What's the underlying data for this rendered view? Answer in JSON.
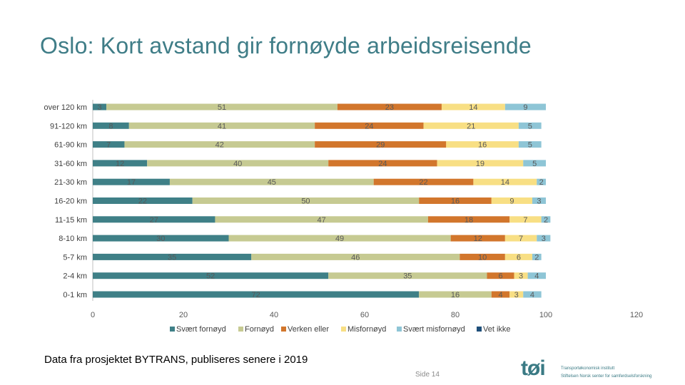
{
  "title": "Oslo: Kort avstand gir fornøyde arbeidsreisende",
  "footer": {
    "source": "Data fra prosjektet BYTRANS, publiseres senere i 2019",
    "page": "Side 14",
    "logo_word": "tøi",
    "logo_line1": "Transportøkonomisk institutt",
    "logo_line2": "Stiftelsen Norsk senter for samferdselsforskning"
  },
  "chart_data": {
    "type": "bar",
    "orientation": "horizontal",
    "stacked": true,
    "categories": [
      "over 120 km",
      "91-120 km",
      "61-90 km",
      "31-60 km",
      "21-30 km",
      "16-20 km",
      "11-15 km",
      "8-10 km",
      "5-7 km",
      "2-4 km",
      "0-1 km"
    ],
    "series": [
      {
        "name": "Svært fornøyd",
        "color": "#3f8087",
        "values": [
          3,
          8,
          7,
          12,
          17,
          22,
          27,
          30,
          35,
          52,
          72
        ]
      },
      {
        "name": "Fornøyd",
        "color": "#c6ca92",
        "values": [
          51,
          41,
          42,
          40,
          45,
          50,
          47,
          49,
          46,
          35,
          16
        ]
      },
      {
        "name": "Verken eller",
        "color": "#d2762c",
        "values": [
          23,
          24,
          29,
          24,
          22,
          16,
          18,
          12,
          10,
          6,
          4
        ]
      },
      {
        "name": "Misfornøyd",
        "color": "#f8df84",
        "values": [
          14,
          21,
          16,
          19,
          14,
          9,
          7,
          7,
          6,
          3,
          3
        ]
      },
      {
        "name": "Svært misfornøyd",
        "color": "#8ec5d6",
        "values": [
          9,
          5,
          5,
          5,
          2,
          3,
          2,
          3,
          2,
          4,
          4
        ]
      },
      {
        "name": "Vet ikke",
        "color": "#1f4f7a",
        "values": [
          0,
          0,
          0,
          0,
          0,
          0,
          0,
          0,
          0,
          0,
          0
        ]
      }
    ],
    "labels": [
      [
        "3",
        "51",
        "23",
        "14",
        "9",
        ""
      ],
      [
        "8",
        "41",
        "24",
        "21",
        "5",
        ""
      ],
      [
        "7",
        "42",
        "29",
        "16",
        "5",
        ""
      ],
      [
        "12",
        "40",
        "24",
        "19",
        "5",
        ""
      ],
      [
        "17",
        "45",
        "22",
        "14",
        "2",
        ""
      ],
      [
        "22",
        "50",
        "16",
        "9",
        "3",
        ""
      ],
      [
        "27",
        "47",
        "18",
        "7",
        "2",
        ""
      ],
      [
        "30",
        "49",
        "12",
        "7",
        "3",
        ""
      ],
      [
        "35",
        "46",
        "10",
        "6",
        "2",
        ""
      ],
      [
        "52",
        "35",
        "6",
        "3",
        "4",
        ""
      ],
      [
        "72",
        "16",
        "4",
        "3",
        "4",
        ""
      ]
    ],
    "xlim": [
      0,
      120
    ],
    "xticks": [
      "0",
      "20",
      "40",
      "60",
      "80",
      "100",
      "120"
    ],
    "grid": false,
    "legend_position": "bottom"
  }
}
